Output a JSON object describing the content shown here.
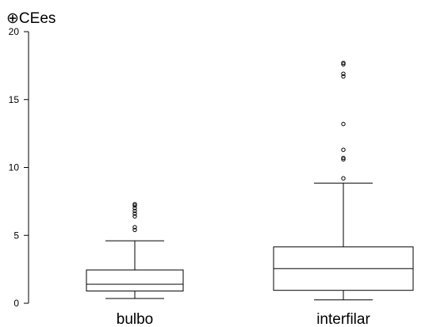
{
  "chart_data": {
    "type": "boxplot",
    "ylabel": "⊕CEes",
    "ylim": [
      0,
      20
    ],
    "yticks": [
      "0",
      "5",
      "10",
      "15",
      "20"
    ],
    "grid": false,
    "categories": [
      "bulbo",
      "interfilar"
    ],
    "series": [
      {
        "category": "bulbo",
        "whisker_low": 0.35,
        "q1": 0.9,
        "median": 1.4,
        "q3": 2.45,
        "whisker_high": 4.6,
        "outliers": [
          5.4,
          5.6,
          6.4,
          6.6,
          6.8,
          7.0,
          7.2,
          7.3
        ]
      },
      {
        "category": "interfilar",
        "whisker_low": 0.25,
        "q1": 0.95,
        "median": 2.55,
        "q3": 4.15,
        "whisker_high": 8.85,
        "outliers": [
          9.2,
          10.6,
          10.7,
          11.3,
          13.2,
          16.7,
          16.9,
          17.6,
          17.7
        ]
      }
    ],
    "colors": {
      "box": "#000000",
      "background": "#ffffff"
    }
  }
}
